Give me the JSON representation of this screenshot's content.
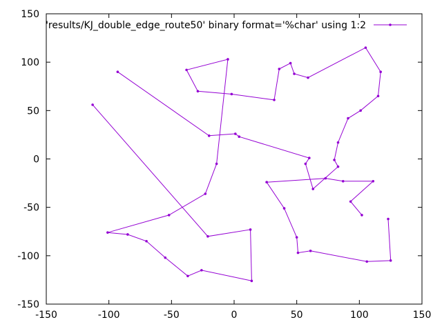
{
  "chart_data": {
    "type": "line",
    "title": "",
    "xlabel": "",
    "ylabel": "",
    "xlim": [
      -150,
      150
    ],
    "ylim": [
      -150,
      150
    ],
    "xticks": [
      -150,
      -100,
      -50,
      0,
      50,
      100,
      150
    ],
    "yticks": [
      -150,
      -100,
      -50,
      0,
      50,
      100,
      150
    ],
    "grid": false,
    "legend_position": "top-right",
    "series": [
      {
        "name": "'results/KJ_double_edge_route50' binary format='%char' using 1:2",
        "color": "#9400d3",
        "marker": "point",
        "points": [
          [
            -113,
            56
          ],
          [
            -21,
            -80
          ],
          [
            13,
            -73
          ],
          [
            14,
            -126
          ],
          [
            -26,
            -115
          ],
          [
            -37,
            -121
          ],
          [
            -55,
            -102
          ],
          [
            -70,
            -85
          ],
          [
            -85,
            -78
          ],
          [
            -101,
            -76
          ],
          [
            -52,
            -58
          ],
          [
            -23,
            -36
          ],
          [
            -14,
            -5
          ],
          [
            -5,
            103
          ],
          [
            -38,
            92
          ],
          [
            -29,
            70
          ],
          [
            -2,
            67
          ],
          [
            32,
            61
          ],
          [
            36,
            93
          ],
          [
            45,
            99
          ],
          [
            48,
            88
          ],
          [
            59,
            84
          ],
          [
            105,
            115
          ],
          [
            117,
            90
          ],
          [
            115,
            65
          ],
          [
            101,
            50
          ],
          [
            91,
            42
          ],
          [
            83,
            17
          ],
          [
            80,
            -1
          ],
          [
            83,
            -8
          ],
          [
            63,
            -31
          ],
          [
            57,
            -5
          ],
          [
            60,
            1
          ],
          [
            4,
            23
          ],
          [
            1,
            26
          ],
          [
            -20,
            24
          ],
          [
            -93,
            90
          ]
        ]
      },
      {
        "name": "",
        "color": "#9400d3",
        "marker": "point",
        "points": [
          [
            26,
            -24
          ],
          [
            73,
            -20
          ],
          [
            87,
            -23
          ],
          [
            111,
            -23
          ],
          [
            93,
            -44
          ],
          [
            102,
            -58
          ]
        ]
      },
      {
        "name": "",
        "color": "#9400d3",
        "marker": "point",
        "points": [
          [
            26,
            -24
          ],
          [
            40,
            -51
          ],
          [
            50,
            -81
          ],
          [
            51,
            -97
          ],
          [
            61,
            -95
          ],
          [
            106,
            -106
          ],
          [
            125,
            -105
          ],
          [
            123,
            -62
          ]
        ]
      }
    ]
  }
}
